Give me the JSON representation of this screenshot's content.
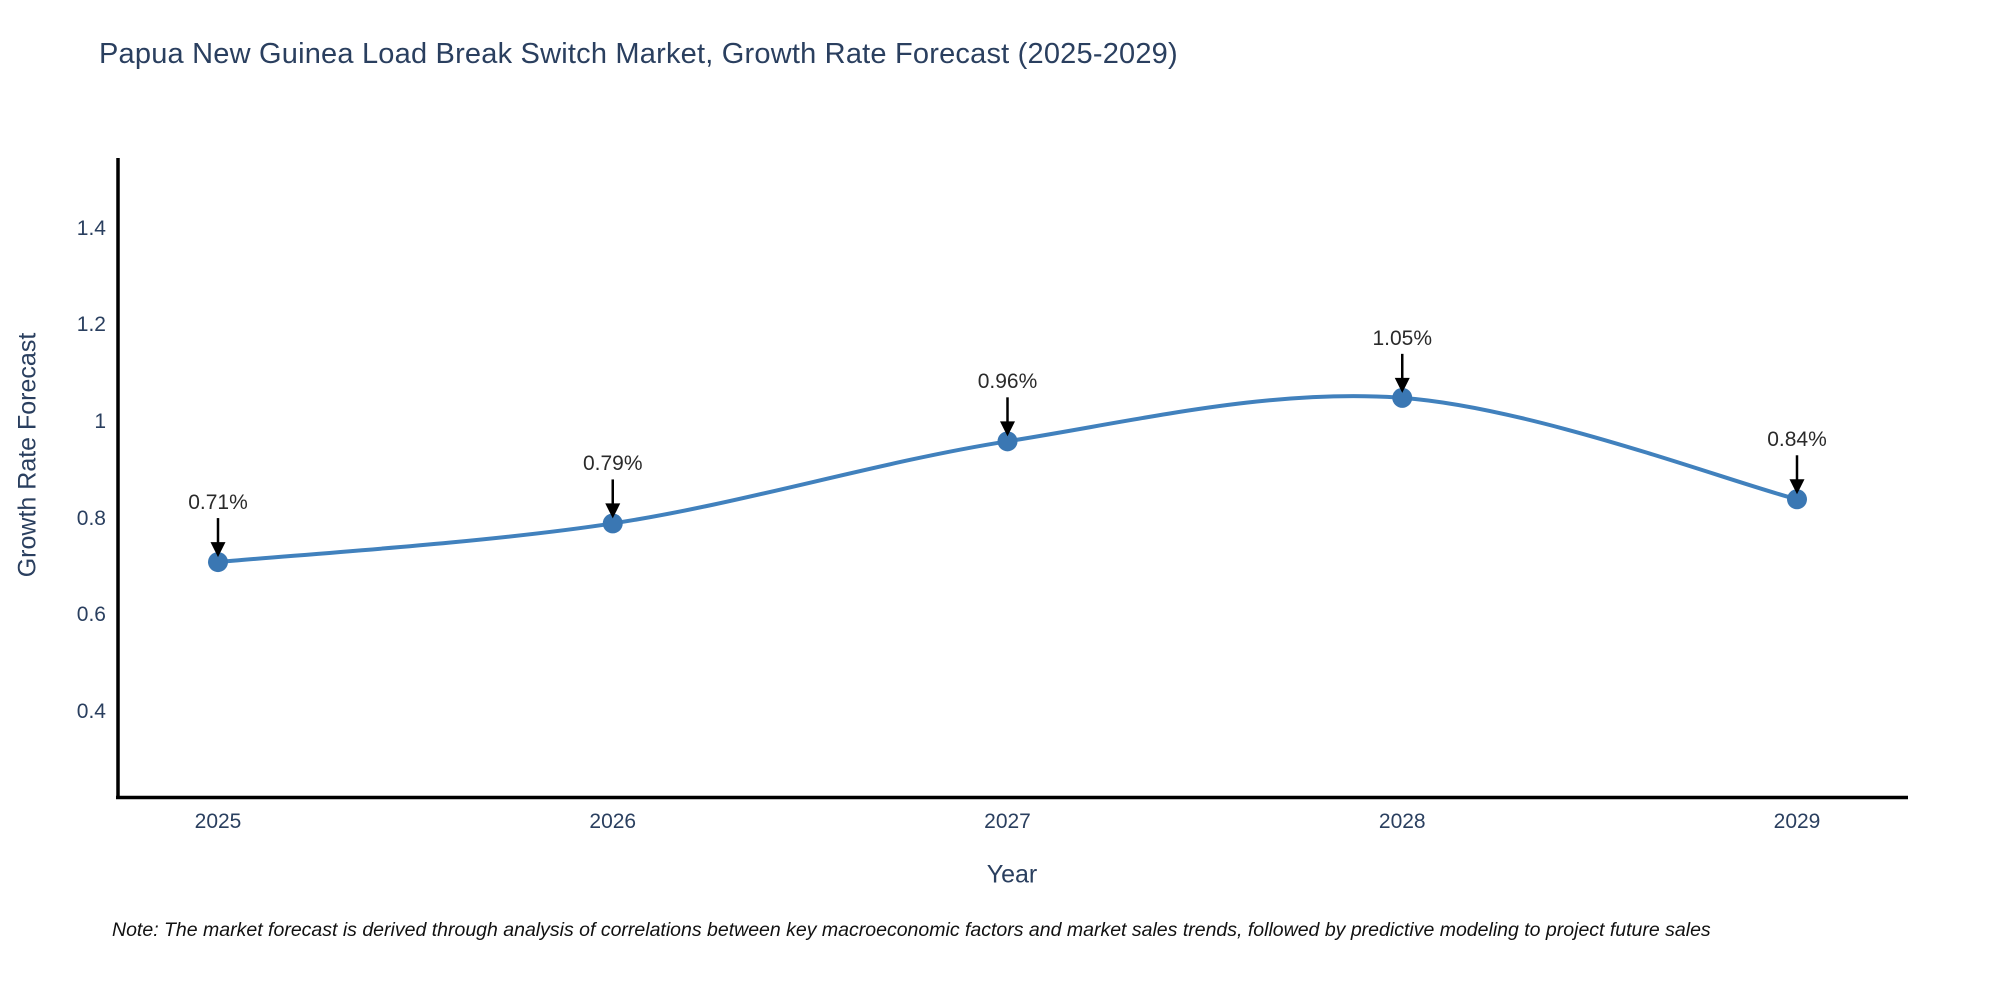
{
  "chart_data": {
    "type": "line",
    "title": "Papua New Guinea Load Break Switch Market, Growth Rate Forecast (2025-2029)",
    "xlabel": "Year",
    "ylabel": "Growth Rate Forecast",
    "x": [
      2025,
      2026,
      2027,
      2028,
      2029
    ],
    "series": [
      {
        "name": "Growth Rate Forecast",
        "values": [
          0.71,
          0.79,
          0.96,
          1.05,
          0.84
        ],
        "point_labels": [
          "0.71%",
          "0.79%",
          "0.96%",
          "1.05%",
          "0.84%"
        ]
      }
    ],
    "x_tick_labels": [
      "2025",
      "2026",
      "2027",
      "2028",
      "2029"
    ],
    "y_tick_values": [
      0.4,
      0.6,
      0.8,
      1,
      1.2,
      1.4
    ],
    "y_tick_labels": [
      "0.4",
      "0.6",
      "0.8",
      "1",
      "1.2",
      "1.4"
    ],
    "ylim": [
      0.22,
      1.54
    ],
    "grid": false,
    "legend": "none",
    "line_shape": "spline",
    "annotations_have_arrows": true,
    "note": "Note: The market forecast is derived through analysis of correlations between key macroeconomic factors and market sales trends, followed by predictive modeling to project future sales",
    "colors": {
      "line": "#4181bd",
      "marker": "#3a77b3",
      "axis": "#000000",
      "arrow": "#000000",
      "text": "#2a3f5f",
      "annotation_text": "#2a2a2a",
      "note_text": "#111111",
      "background": "#ffffff"
    }
  }
}
